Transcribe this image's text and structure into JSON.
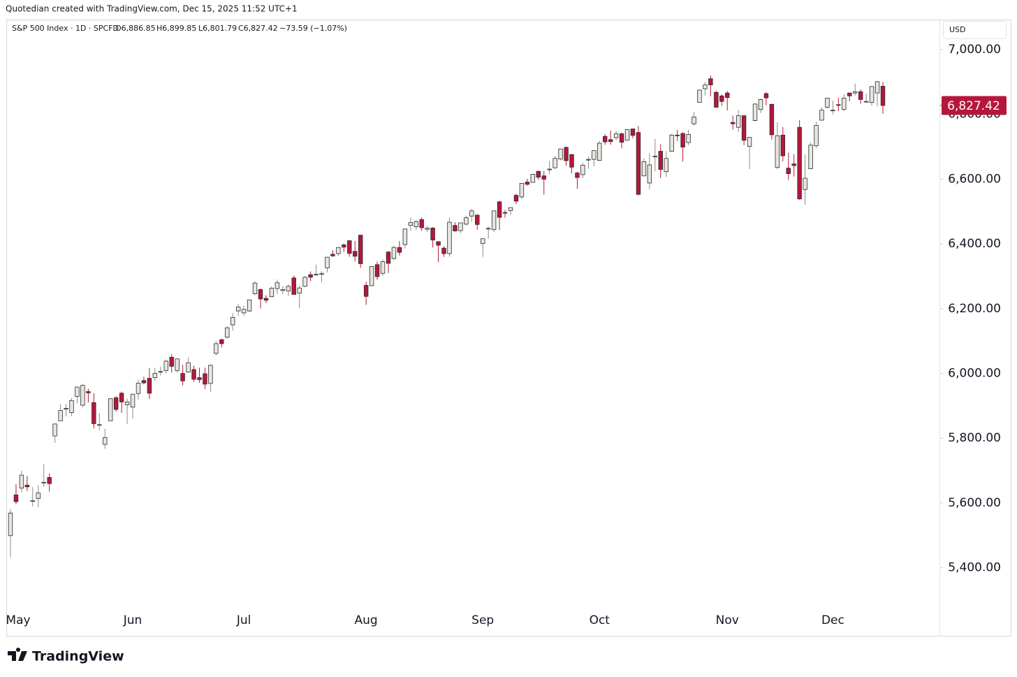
{
  "header": {
    "attribution": "Quotedian created with TradingView.com, Dec 15, 2025 11:52 UTC+1",
    "symbol": "S&P 500 Index · 1D · SPCFD",
    "open_label": "O6,886.85",
    "high_label": "H6,899.85",
    "low_label": "L6,801.79",
    "close_label": "C6,827.42",
    "change_label": "−73.59 (−1.07%)"
  },
  "currency": "USD",
  "last_price_label": "6,827.42",
  "brand": "TradingView",
  "chart_data": {
    "type": "candlestick",
    "categories": [
      null,
      "May",
      null,
      null,
      null,
      null,
      null,
      null,
      null,
      null,
      null,
      null,
      null,
      null,
      null,
      null,
      null,
      null,
      null,
      null,
      null,
      null,
      "Jun",
      null,
      null,
      null,
      null,
      null,
      null,
      null,
      null,
      null,
      null,
      null,
      null,
      null,
      null,
      null,
      null,
      null,
      null,
      null,
      "Jul",
      null,
      null,
      null,
      null,
      null,
      null,
      null,
      null,
      null,
      null,
      null,
      null,
      null,
      null,
      null,
      null,
      null,
      null,
      null,
      null,
      null,
      "Aug",
      null,
      null,
      null,
      null,
      null,
      null,
      null,
      null,
      null,
      null,
      null,
      null,
      null,
      null,
      null,
      null,
      null,
      null,
      null,
      null,
      "Sep",
      null,
      null,
      null,
      null,
      null,
      null,
      null,
      null,
      null,
      null,
      null,
      null,
      null,
      null,
      null,
      null,
      null,
      null,
      null,
      null,
      "Oct",
      null,
      null,
      null,
      null,
      null,
      null,
      null,
      null,
      null,
      null,
      null,
      null,
      null,
      null,
      null,
      null,
      null,
      null,
      null,
      null,
      null,
      null,
      "Nov",
      null,
      null,
      null,
      null,
      null,
      null,
      null,
      null,
      null,
      null,
      null,
      null,
      null,
      null,
      null,
      null,
      null,
      null,
      "Dec",
      null,
      null,
      null,
      null,
      null,
      null,
      null,
      null,
      null
    ],
    "open": [
      5499,
      5625,
      5646,
      5655,
      5605,
      5614,
      5663,
      5679,
      5807,
      5854,
      5891,
      5879,
      5929,
      5902,
      5944,
      5910,
      5841,
      5781,
      5854,
      5925,
      5939,
      5903,
      5896,
      5938,
      5978,
      5985,
      5987,
      6004,
      6009,
      6050,
      6009,
      6000,
      6004,
      6012,
      5987,
      5999,
      5969,
      6062,
      6104,
      6112,
      6150,
      6193,
      6187,
      6193,
      6246,
      6259,
      6232,
      6237,
      6262,
      6256,
      6255,
      6295,
      6248,
      6269,
      6305,
      6304,
      6306,
      6326,
      6368,
      6370,
      6397,
      6410,
      6377,
      6427,
      6272,
      6271,
      6336,
      6309,
      6375,
      6355,
      6389,
      6398,
      6457,
      6453,
      6475,
      6445,
      6449,
      6407,
      6387,
      6370,
      6457,
      6441,
      6461,
      6486,
      6489,
      6401,
      6448,
      6444,
      6530,
      6497,
      6503,
      6550,
      6545,
      6591,
      6590,
      6624,
      6610,
      6630,
      6635,
      6662,
      6698,
      6676,
      6619,
      6614,
      6661,
      6661,
      6658,
      6732,
      6722,
      6728,
      6740,
      6720,
      6755,
      6744,
      6610,
      6588,
      6670,
      6686,
      6623,
      6686,
      6736,
      6741,
      6713,
      6771,
      6837,
      6879,
      6910,
      6868,
      6857,
      6866,
      6775,
      6760,
      6796,
      6701,
      6781,
      6815,
      6864,
      6831,
      6636,
      6736,
      6634,
      6647,
      6760,
      6568,
      6632,
      6703,
      6782,
      6822,
      6812,
      6830,
      6815,
      6866,
      6866,
      6870,
      6840,
      6837,
      6866,
      6886.85
    ],
    "high": [
      5581,
      5658,
      5700,
      5683,
      5649,
      5655,
      5720,
      5691,
      5845,
      5906,
      5906,
      5924,
      5958,
      5968,
      5953,
      5939,
      5878,
      5829,
      5924,
      5930,
      5944,
      5922,
      5937,
      5981,
      5990,
      6016,
      6017,
      6021,
      6043,
      6059,
      6045,
      6027,
      6050,
      6024,
      6018,
      6018,
      6028,
      6101,
      6108,
      6146,
      6187,
      6215,
      6210,
      6227,
      6285,
      6262,
      6242,
      6269,
      6290,
      6270,
      6275,
      6302,
      6271,
      6301,
      6315,
      6336,
      6316,
      6360,
      6381,
      6390,
      6401,
      6410,
      6409,
      6428,
      6283,
      6330,
      6346,
      6352,
      6378,
      6395,
      6409,
      6446,
      6481,
      6473,
      6482,
      6456,
      6452,
      6407,
      6393,
      6481,
      6467,
      6466,
      6487,
      6508,
      6491,
      6416,
      6454,
      6502,
      6533,
      6505,
      6513,
      6555,
      6587,
      6601,
      6616,
      6627,
      6625,
      6657,
      6672,
      6694,
      6701,
      6677,
      6623,
      6650,
      6670,
      6689,
      6718,
      6739,
      6750,
      6749,
      6744,
      6753,
      6756,
      6764,
      6664,
      6680,
      6724,
      6708,
      6687,
      6740,
      6752,
      6745,
      6752,
      6807,
      6876,
      6900,
      6920,
      6873,
      6862,
      6872,
      6796,
      6813,
      6796,
      6729,
      6833,
      6849,
      6869,
      6833,
      6775,
      6761,
      6682,
      6677,
      6782,
      6676,
      6714,
      6777,
      6822,
      6850,
      6843,
      6851,
      6862,
      6866,
      6895,
      6877,
      6864,
      6887,
      6903,
      6899.85
    ],
    "low": [
      5433,
      5597,
      5633,
      5637,
      5589,
      5587,
      5650,
      5635,
      5786,
      5853,
      5868,
      5868,
      5907,
      5895,
      5910,
      5830,
      5825,
      5767,
      5854,
      5882,
      5878,
      5844,
      5861,
      5919,
      5966,
      5921,
      5978,
      5994,
      6000,
      6002,
      6003,
      5963,
      6004,
      5974,
      5971,
      5952,
      5943,
      6056,
      6080,
      6108,
      6132,
      6178,
      6177,
      6189,
      6242,
      6201,
      6217,
      6236,
      6245,
      6245,
      6239,
      6244,
      6201,
      6266,
      6285,
      6303,
      6281,
      6312,
      6360,
      6363,
      6375,
      6360,
      6346,
      6326,
      6212,
      6270,
      6289,
      6302,
      6310,
      6350,
      6364,
      6386,
      6441,
      6442,
      6440,
      6437,
      6389,
      6343,
      6360,
      6361,
      6438,
      6433,
      6457,
      6469,
      6444,
      6360,
      6416,
      6437,
      6443,
      6481,
      6489,
      6523,
      6539,
      6580,
      6590,
      6598,
      6552,
      6615,
      6632,
      6658,
      6642,
      6618,
      6570,
      6603,
      6632,
      6640,
      6656,
      6706,
      6706,
      6720,
      6695,
      6720,
      6726,
      6550,
      6609,
      6569,
      6624,
      6603,
      6607,
      6685,
      6718,
      6654,
      6705,
      6766,
      6837,
      6858,
      6856,
      6821,
      6826,
      6812,
      6753,
      6745,
      6705,
      6631,
      6778,
      6804,
      6828,
      6722,
      6631,
      6655,
      6598,
      6608,
      6536,
      6521,
      6632,
      6695,
      6781,
      6818,
      6800,
      6810,
      6810,
      6840,
      6858,
      6833,
      6836,
      6827,
      6825,
      6801.79
    ],
    "close": [
      5569,
      5604,
      5686,
      5650,
      5607,
      5631,
      5664,
      5660,
      5844,
      5886,
      5892,
      5916,
      5958,
      5963,
      5940,
      5845,
      5842,
      5802,
      5922,
      5889,
      5912,
      5912,
      5936,
      5970,
      5971,
      5939,
      6000,
      6006,
      6038,
      6022,
      6045,
      5977,
      6033,
      5982,
      5981,
      5967,
      6025,
      6092,
      6092,
      6141,
      6173,
      6205,
      6198,
      6227,
      6279,
      6230,
      6226,
      6263,
      6280,
      6259,
      6269,
      6244,
      6264,
      6297,
      6297,
      6306,
      6309,
      6359,
      6363,
      6389,
      6390,
      6371,
      6362,
      6339,
      6238,
      6330,
      6299,
      6345,
      6340,
      6389,
      6374,
      6446,
      6466,
      6469,
      6450,
      6449,
      6412,
      6396,
      6370,
      6467,
      6440,
      6465,
      6481,
      6502,
      6460,
      6416,
      6448,
      6502,
      6482,
      6495,
      6512,
      6532,
      6587,
      6584,
      6615,
      6606,
      6600,
      6631,
      6664,
      6693,
      6657,
      6637,
      6605,
      6643,
      6661,
      6688,
      6711,
      6715,
      6716,
      6740,
      6714,
      6753,
      6735,
      6553,
      6654,
      6644,
      6671,
      6630,
      6664,
      6736,
      6735,
      6699,
      6738,
      6792,
      6875,
      6891,
      6891,
      6822,
      6840,
      6852,
      6771,
      6796,
      6720,
      6729,
      6832,
      6846,
      6851,
      6737,
      6734,
      6672,
      6617,
      6642,
      6539,
      6603,
      6705,
      6766,
      6813,
      6850,
      6813,
      6829,
      6850,
      6857,
      6870,
      6846,
      6840,
      6886,
      6901,
      6827.42
    ],
    "up_color": "#e8e6e1",
    "down_color": "#b5173c",
    "outline_color": "#2a2a2a",
    "ylim": [
      5190,
      7110
    ],
    "yticks": [
      {
        "value": 5400,
        "label": "5,400.00"
      },
      {
        "value": 5600,
        "label": "5,600.00"
      },
      {
        "value": 5800,
        "label": "5,800.00"
      },
      {
        "value": 6000,
        "label": "6,000.00"
      },
      {
        "value": 6200,
        "label": "6,200.00"
      },
      {
        "value": 6400,
        "label": "6,400.00"
      },
      {
        "value": 6600,
        "label": "6,600.00"
      },
      {
        "value": 6800,
        "label": "6,800.00"
      },
      {
        "value": 7000,
        "label": "7,000.00"
      }
    ],
    "grid": false
  }
}
